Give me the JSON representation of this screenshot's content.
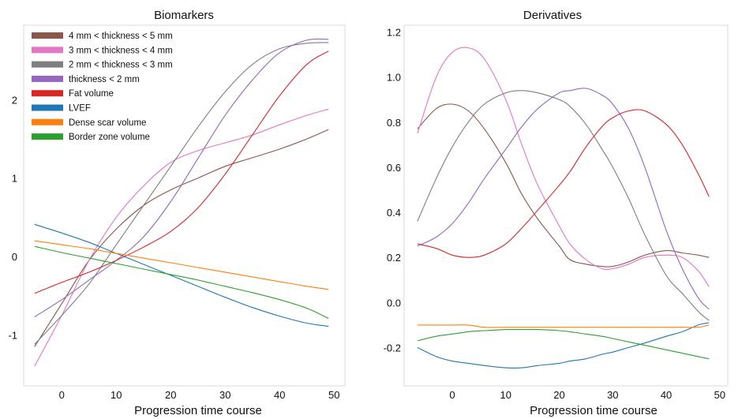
{
  "chart_data": [
    {
      "type": "line",
      "title": "Biomarkers",
      "xlabel": "Progression time course",
      "ylabel": "",
      "xlim": [
        -7,
        52
      ],
      "ylim": [
        -1.65,
        2.95
      ],
      "xticks": [
        0,
        10,
        20,
        30,
        40,
        50
      ],
      "yticks": [
        -1,
        0,
        1,
        2
      ],
      "ytick_labels": [
        "-1",
        "0",
        "1",
        "2"
      ],
      "grid": false,
      "legend_position": "top-left",
      "x": [
        -5,
        0,
        5,
        10,
        15,
        20,
        25,
        30,
        35,
        40,
        45,
        49
      ],
      "series": [
        {
          "name": "4 mm < thickness < 5 mm",
          "color": "#8c564b",
          "values": [
            -1.15,
            -0.6,
            -0.05,
            0.35,
            0.65,
            0.85,
            1.0,
            1.15,
            1.26,
            1.37,
            1.5,
            1.62
          ]
        },
        {
          "name": "3 mm < thickness < 4 mm",
          "color": "#e377c2",
          "values": [
            -1.4,
            -0.75,
            -0.05,
            0.5,
            0.9,
            1.2,
            1.35,
            1.45,
            1.55,
            1.68,
            1.8,
            1.88
          ]
        },
        {
          "name": "2 mm < thickness < 3 mm",
          "color": "#7f7f7f",
          "values": [
            -1.12,
            -0.75,
            -0.35,
            0.15,
            0.65,
            1.15,
            1.65,
            2.1,
            2.45,
            2.65,
            2.72,
            2.73
          ]
        },
        {
          "name": "thickness < 2 mm",
          "color": "#9467bd",
          "values": [
            -0.77,
            -0.55,
            -0.3,
            -0.05,
            0.25,
            0.7,
            1.25,
            1.8,
            2.25,
            2.6,
            2.76,
            2.77
          ]
        },
        {
          "name": "Fat volume",
          "color": "#d62728",
          "values": [
            -0.47,
            -0.33,
            -0.2,
            -0.05,
            0.12,
            0.32,
            0.62,
            1.05,
            1.55,
            2.05,
            2.45,
            2.62
          ]
        },
        {
          "name": "LVEF",
          "color": "#1f77b4",
          "values": [
            0.41,
            0.3,
            0.18,
            0.04,
            -0.1,
            -0.24,
            -0.38,
            -0.52,
            -0.65,
            -0.76,
            -0.85,
            -0.89
          ]
        },
        {
          "name": "Dense scar volume",
          "color": "#ff7f0e",
          "values": [
            0.2,
            0.15,
            0.1,
            0.04,
            -0.02,
            -0.08,
            -0.14,
            -0.2,
            -0.26,
            -0.32,
            -0.38,
            -0.42
          ]
        },
        {
          "name": "Border zone volume",
          "color": "#2ca02c",
          "values": [
            0.13,
            0.05,
            -0.02,
            -0.09,
            -0.16,
            -0.23,
            -0.3,
            -0.38,
            -0.46,
            -0.55,
            -0.66,
            -0.79
          ]
        }
      ]
    },
    {
      "type": "line",
      "title": "Derivatives",
      "xlabel": "Progression time course",
      "ylabel": "",
      "xlim": [
        -9,
        51.5
      ],
      "ylim": [
        -0.37,
        1.23
      ],
      "xticks": [
        0,
        10,
        20,
        30,
        40,
        50
      ],
      "yticks": [
        -0.2,
        0.0,
        0.2,
        0.4,
        0.6,
        0.8,
        1.0,
        1.2
      ],
      "ytick_labels": [
        "-0.2",
        "0.0",
        "0.2",
        "0.4",
        "0.6",
        "0.8",
        "1.0",
        "1.2"
      ],
      "grid": false,
      "legend_position": "none",
      "x": [
        -6.5,
        -3,
        0,
        3,
        6,
        10,
        13,
        16,
        20,
        22,
        25,
        28,
        30,
        33,
        36,
        40,
        43,
        46,
        48
      ],
      "series": [
        {
          "name": "4 mm < thickness < 5 mm",
          "color": "#8c564b",
          "values": [
            0.77,
            0.86,
            0.88,
            0.85,
            0.77,
            0.62,
            0.48,
            0.37,
            0.25,
            0.19,
            0.17,
            0.16,
            0.16,
            0.18,
            0.21,
            0.23,
            0.22,
            0.21,
            0.2
          ]
        },
        {
          "name": "3 mm < thickness < 4 mm",
          "color": "#e377c2",
          "values": [
            0.75,
            1.0,
            1.11,
            1.13,
            1.08,
            0.9,
            0.7,
            0.52,
            0.34,
            0.26,
            0.19,
            0.15,
            0.15,
            0.17,
            0.2,
            0.21,
            0.2,
            0.14,
            0.07
          ]
        },
        {
          "name": "2 mm < thickness < 3 mm",
          "color": "#7f7f7f",
          "values": [
            0.36,
            0.55,
            0.69,
            0.8,
            0.88,
            0.93,
            0.94,
            0.93,
            0.9,
            0.87,
            0.79,
            0.68,
            0.6,
            0.46,
            0.3,
            0.12,
            0.04,
            -0.04,
            -0.08
          ]
        },
        {
          "name": "thickness < 2 mm",
          "color": "#9467bd",
          "values": [
            0.25,
            0.29,
            0.35,
            0.44,
            0.55,
            0.68,
            0.78,
            0.86,
            0.93,
            0.94,
            0.95,
            0.92,
            0.88,
            0.77,
            0.6,
            0.32,
            0.15,
            0.02,
            -0.03
          ]
        },
        {
          "name": "Fat volume",
          "color": "#d62728",
          "values": [
            0.26,
            0.24,
            0.21,
            0.2,
            0.21,
            0.26,
            0.33,
            0.41,
            0.52,
            0.58,
            0.69,
            0.78,
            0.82,
            0.85,
            0.85,
            0.79,
            0.7,
            0.57,
            0.47
          ]
        },
        {
          "name": "LVEF",
          "color": "#1f77b4",
          "values": [
            -0.2,
            -0.24,
            -0.26,
            -0.27,
            -0.28,
            -0.29,
            -0.29,
            -0.28,
            -0.27,
            -0.26,
            -0.25,
            -0.23,
            -0.22,
            -0.2,
            -0.18,
            -0.15,
            -0.13,
            -0.1,
            -0.09
          ]
        },
        {
          "name": "Dense scar volume",
          "color": "#ff7f0e",
          "values": [
            -0.1,
            -0.1,
            -0.1,
            -0.1,
            -0.11,
            -0.11,
            -0.11,
            -0.11,
            -0.11,
            -0.11,
            -0.11,
            -0.11,
            -0.11,
            -0.11,
            -0.11,
            -0.11,
            -0.11,
            -0.11,
            -0.1
          ]
        },
        {
          "name": "Border zone volume",
          "color": "#2ca02c",
          "values": [
            -0.17,
            -0.15,
            -0.14,
            -0.13,
            -0.125,
            -0.12,
            -0.12,
            -0.12,
            -0.125,
            -0.13,
            -0.14,
            -0.15,
            -0.16,
            -0.175,
            -0.19,
            -0.21,
            -0.225,
            -0.24,
            -0.25
          ]
        }
      ]
    }
  ]
}
